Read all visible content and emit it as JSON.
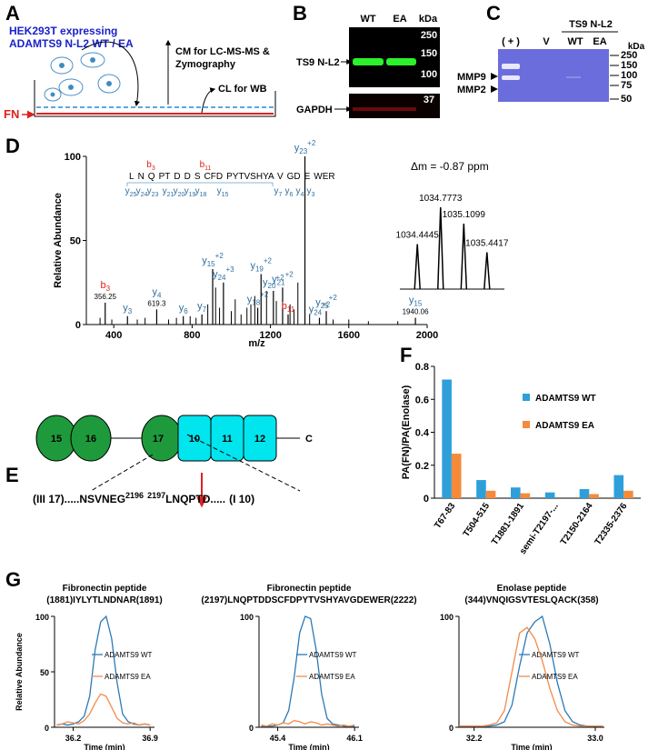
{
  "panel_letters": [
    "A",
    "B",
    "C",
    "D",
    "E",
    "F",
    "G"
  ],
  "panel_A": {
    "cell_line": "HEK293T expressing",
    "construct": "ADAMTS9 N-L2 WT / EA",
    "cm_use": "CM for LC-MS-MS &",
    "cm_use2": "Zymography",
    "cl_use": "CL for WB",
    "substrate": "FN"
  },
  "panel_B": {
    "lanes": [
      "WT",
      "EA"
    ],
    "kda": "kDa",
    "markers": [
      "250",
      "150",
      "100"
    ],
    "marker_gapdh": "37",
    "target": "TS9 N-L2",
    "loading": "GAPDH"
  },
  "panel_C": {
    "lanes": [
      "( + )",
      "V",
      "WT",
      "EA"
    ],
    "group": "TS9 N-L2",
    "kda": "kDa",
    "markers": [
      "250",
      "150",
      "100",
      "75",
      "50"
    ],
    "bands": [
      "MMP9",
      "MMP2"
    ]
  },
  "panel_E": {
    "domains": [
      "15",
      "16",
      "17",
      "10",
      "11",
      "12"
    ],
    "terminus": "C",
    "site": {
      "left": "(III 17).....NSVNEG",
      "left_residue": "2196",
      "right_residue": "2197",
      "right": "LNQPTD.....",
      "end": "(I 10)"
    }
  },
  "chart_data": [
    {
      "type": "spectrum",
      "ylabel": "Relative Abundance",
      "xlabel": "m/z",
      "xlim": [
        260,
        2000
      ],
      "xticks": [
        400,
        800,
        1200,
        1600,
        2000
      ],
      "ylim": [
        0,
        100
      ],
      "yticks": [
        0,
        50,
        100
      ],
      "color": "#000000",
      "ion_colors": {
        "b": "#e0201b",
        "y": "#2f6f9f"
      },
      "peaks": {
        "x": [
          330,
          390,
          520,
          560,
          680,
          720,
          790,
          820,
          880,
          920,
          940,
          1000,
          1020,
          1050,
          1080,
          1100,
          1120,
          1180,
          1230,
          1300,
          1320,
          1340,
          1400,
          1520,
          1600,
          1700,
          1850
        ],
        "values": [
          4,
          3,
          3,
          4,
          3,
          4,
          5,
          4,
          12,
          22,
          10,
          8,
          15,
          6,
          10,
          12,
          17,
          20,
          14,
          12,
          9,
          25,
          6,
          3,
          3,
          2,
          2
        ]
      },
      "labeled_peaks": [
        {
          "ion": "b",
          "number": "3",
          "x": 356.25,
          "value": 13,
          "x_label": 356.25
        },
        {
          "ion": "y",
          "number": "3",
          "x": 470,
          "value": 5
        },
        {
          "ion": "y",
          "number": "4",
          "x": 619.3,
          "value": 9,
          "x_label": 619.3
        },
        {
          "ion": "y",
          "number": "6",
          "x": 755,
          "value": 5
        },
        {
          "ion": "y",
          "number": "7",
          "x": 850,
          "value": 6
        },
        {
          "ion": "y",
          "number": "15",
          "charge": "+2",
          "x": 905,
          "value": 33
        },
        {
          "ion": "y",
          "number": "24",
          "charge": "+3",
          "x": 960,
          "value": 25
        },
        {
          "ion": "y",
          "number": "18",
          "charge": "+2",
          "x": 1135,
          "value": 10
        },
        {
          "ion": "y",
          "number": "19",
          "charge": "+2",
          "x": 1152,
          "value": 30
        },
        {
          "ion": "y",
          "number": "20",
          "charge": "+2",
          "x": 1215,
          "value": 20
        },
        {
          "ion": "y",
          "number": "21",
          "charge": "+2",
          "x": 1262,
          "value": 22
        },
        {
          "ion": "b",
          "number": "11",
          "x": 1290,
          "value": 6
        },
        {
          "ion": "y",
          "number": "23",
          "charge": "+2",
          "x": 1376,
          "value": 100
        },
        {
          "ion": "y",
          "number": "24",
          "charge": "+2",
          "x": 1450,
          "value": 4
        },
        {
          "ion": "y",
          "number": "25",
          "charge": "+2",
          "x": 1485,
          "value": 8
        },
        {
          "ion": "y",
          "number": "15",
          "x": 1940.06,
          "value": 4,
          "x_label": 1940.06
        }
      ],
      "inset": {
        "annotation": "Δm = -0.87 ppm",
        "x": [
          1034.4445,
          1034.7773,
          1035.1099,
          1035.4417
        ],
        "values": [
          55,
          100,
          80,
          45
        ]
      },
      "sequence": {
        "segments": [
          "L",
          "N",
          "Q",
          "PT",
          "D",
          "D",
          "S",
          "CFD",
          "PYTVSHYA",
          "V",
          "GD",
          "E",
          "WER"
        ],
        "b_ions": [
          {
            "ion": "b",
            "number": "3"
          },
          {
            "ion": "b",
            "number": "11"
          }
        ],
        "y_ions": [
          {
            "ion": "y",
            "number": "25"
          },
          {
            "ion": "y",
            "number": "24"
          },
          {
            "ion": "y",
            "number": "23"
          },
          {
            "ion": "y",
            "number": "21"
          },
          {
            "ion": "y",
            "number": "20"
          },
          {
            "ion": "y",
            "number": "19"
          },
          {
            "ion": "y",
            "number": "18"
          },
          {
            "ion": "y",
            "number": "15"
          },
          {
            "ion": "y",
            "number": "7"
          },
          {
            "ion": "y",
            "number": "6"
          },
          {
            "ion": "y",
            "number": "4"
          },
          {
            "ion": "y",
            "number": "3"
          }
        ]
      }
    },
    {
      "type": "bar",
      "ylabel": "PA(FN)/PA(Enolase)",
      "categories": [
        "T67-83",
        "T504-515",
        "T1881-1891",
        "semi-T2197-...",
        "T2150-2164",
        "T2335-2376"
      ],
      "series": [
        {
          "name": "ADAMTS9 WT",
          "color": "#2e9fd9",
          "values": [
            0.72,
            0.11,
            0.065,
            0.035,
            0.055,
            0.14
          ]
        },
        {
          "name": "ADAMTS9 EA",
          "color": "#f58a3a",
          "values": [
            0.27,
            0.045,
            0.03,
            null,
            0.025,
            0.045
          ]
        }
      ],
      "ylim": [
        0,
        0.8
      ],
      "yticks": [
        0,
        0.2,
        0.4,
        0.6,
        0.8
      ],
      "legend": "upper right"
    },
    {
      "type": "line",
      "title": [
        "Fibronectin peptide",
        "(1881)IYLYTLNDNAR(1891)"
      ],
      "ylabel": "Relative Abundance",
      "xlabel": "Time (min)",
      "xlim": [
        36.03,
        36.94
      ],
      "xticks": [
        36.2,
        36.9
      ],
      "ylim": [
        0,
        100
      ],
      "yticks": [
        0,
        50,
        100
      ],
      "legend": "right",
      "x": [
        36.05,
        36.1,
        36.15,
        36.2,
        36.25,
        36.3,
        36.35,
        36.4,
        36.45,
        36.5,
        36.55,
        36.6,
        36.65,
        36.7,
        36.75,
        36.8,
        36.85,
        36.9
      ],
      "series": [
        {
          "name": "ADAMTS9 WT",
          "color": "#2a7ab8",
          "values": [
            2,
            3,
            2,
            3,
            5,
            10,
            28,
            70,
            95,
            100,
            80,
            40,
            12,
            5,
            3,
            2,
            3,
            2
          ]
        },
        {
          "name": "ADAMTS9 EA",
          "color": "#f28b4a",
          "values": [
            2,
            3,
            5,
            4,
            3,
            6,
            12,
            22,
            30,
            28,
            18,
            8,
            4,
            3,
            4,
            2,
            3,
            2
          ]
        }
      ]
    },
    {
      "type": "line",
      "title": [
        "Fibronectin peptide",
        "(2197)LNQPTDDSCFDPYTVSHYAVGDEWER(2222)"
      ],
      "xlabel": "Time (min)",
      "xlim": [
        45.23,
        46.14
      ],
      "xticks": [
        45.4,
        46.1
      ],
      "ylim": [
        0,
        100
      ],
      "yticks": [
        0,
        100
      ],
      "legend": "right",
      "x": [
        45.25,
        45.3,
        45.35,
        45.4,
        45.45,
        45.5,
        45.55,
        45.6,
        45.65,
        45.7,
        45.75,
        45.8,
        45.85,
        45.9,
        45.95,
        46.0,
        46.05,
        46.1
      ],
      "series": [
        {
          "name": "ADAMTS9 WT",
          "color": "#2a7ab8",
          "values": [
            1,
            1,
            1,
            2,
            4,
            15,
            45,
            85,
            100,
            98,
            70,
            30,
            8,
            3,
            2,
            1,
            1,
            1
          ]
        },
        {
          "name": "ADAMTS9 EA",
          "color": "#f28b4a",
          "values": [
            2,
            1,
            3,
            2,
            4,
            3,
            6,
            5,
            3,
            5,
            4,
            2,
            3,
            2,
            1,
            2,
            1,
            2
          ]
        }
      ]
    },
    {
      "type": "line",
      "title": [
        "Enolase peptide",
        "(344)VNQIGSVTESLQACK(358)"
      ],
      "xlabel": "Time (min)",
      "xlim": [
        32.1,
        33.06
      ],
      "xticks": [
        32.2,
        {
          "value": 33,
          "label": "33.0"
        }
      ],
      "ylim": [
        0,
        100
      ],
      "yticks": [
        0,
        100
      ],
      "legend": "right",
      "x": [
        32.1,
        32.15,
        32.2,
        32.25,
        32.3,
        32.35,
        32.4,
        32.45,
        32.5,
        32.55,
        32.6,
        32.65,
        32.7,
        32.75,
        32.8,
        32.85,
        32.9,
        32.95,
        33.0,
        33.05
      ],
      "series": [
        {
          "name": "ADAMTS9 WT",
          "color": "#2a7ab8",
          "values": [
            1,
            1,
            1,
            1,
            1,
            2,
            5,
            20,
            55,
            85,
            95,
            100,
            75,
            40,
            15,
            5,
            2,
            1,
            1,
            1
          ]
        },
        {
          "name": "ADAMTS9 EA",
          "color": "#f28b4a",
          "values": [
            1,
            1,
            1,
            1,
            2,
            4,
            15,
            50,
            85,
            90,
            80,
            60,
            35,
            15,
            5,
            2,
            1,
            1,
            1,
            1
          ]
        }
      ]
    }
  ]
}
